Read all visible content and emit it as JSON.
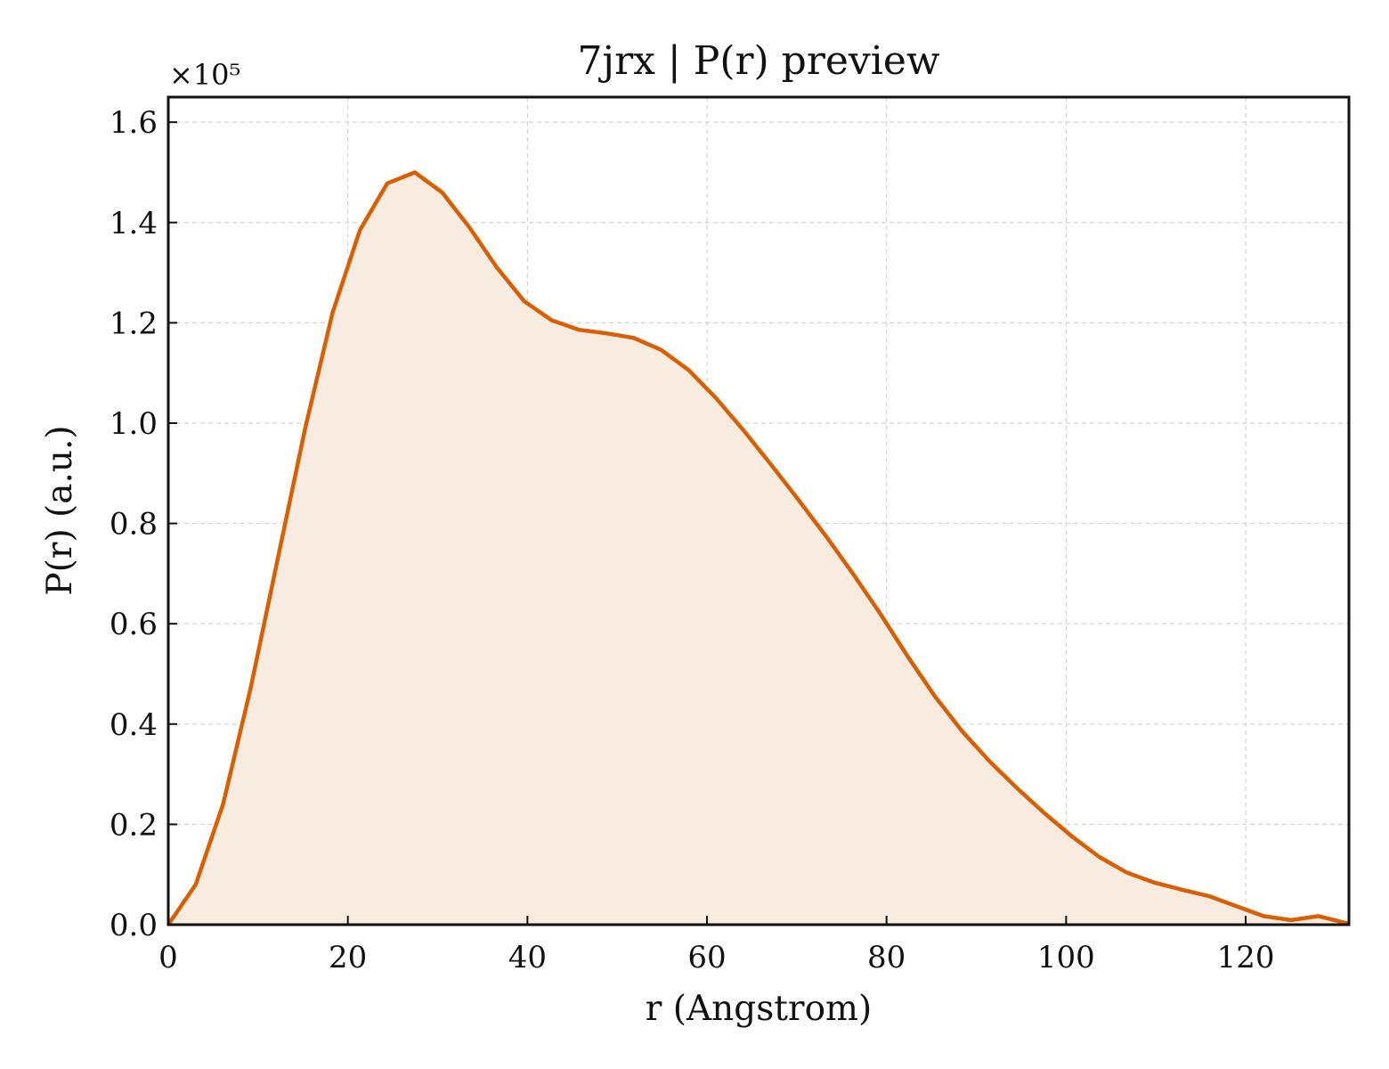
{
  "chart_data": {
    "type": "area",
    "title": "7jrx | P(r) preview",
    "xlabel": "r (Angstrom)",
    "ylabel": "P(r) (a.u.)",
    "y_offset_label": "×10⁵",
    "y_scale": 100000,
    "xlim": [
      0,
      131.5
    ],
    "ylim": [
      0,
      1.65
    ],
    "x_ticks": [
      0,
      20,
      40,
      60,
      80,
      100,
      120
    ],
    "x_tick_labels": [
      "0",
      "20",
      "40",
      "60",
      "80",
      "100",
      "120"
    ],
    "y_ticks": [
      0.0,
      0.2,
      0.4,
      0.6,
      0.8,
      1.0,
      1.2,
      1.4,
      1.6
    ],
    "y_tick_labels": [
      "0.0",
      "0.2",
      "0.4",
      "0.6",
      "0.8",
      "1.0",
      "1.2",
      "1.4",
      "1.6"
    ],
    "grid": true,
    "color": "#d95f02",
    "fill_color": "#f8ebe0",
    "series": [
      {
        "x": [
          0,
          3.05,
          6.1,
          9.15,
          12.2,
          15.25,
          18.3,
          21.35,
          24.4,
          27.45,
          30.5,
          33.55,
          36.6,
          39.65,
          42.7,
          45.75,
          48.8,
          51.85,
          54.9,
          57.95,
          61.0,
          64.05,
          67.1,
          70.15,
          73.2,
          76.25,
          79.3,
          82.35,
          85.4,
          88.45,
          91.5,
          94.55,
          97.6,
          100.65,
          103.7,
          106.75,
          109.8,
          112.85,
          115.9,
          118.95,
          122.0,
          125.05,
          128.1,
          131.5
        ],
        "y": [
          0.0,
          0.08,
          0.24,
          0.47,
          0.73,
          0.99,
          1.22,
          1.385,
          1.478,
          1.5,
          1.46,
          1.39,
          1.31,
          1.243,
          1.205,
          1.186,
          1.179,
          1.17,
          1.146,
          1.106,
          1.05,
          0.986,
          0.918,
          0.848,
          0.776,
          0.7,
          0.62,
          0.535,
          0.455,
          0.385,
          0.325,
          0.272,
          0.222,
          0.176,
          0.135,
          0.104,
          0.084,
          0.07,
          0.057,
          0.037,
          0.017,
          0.009,
          0.017,
          0.002
        ]
      }
    ]
  }
}
